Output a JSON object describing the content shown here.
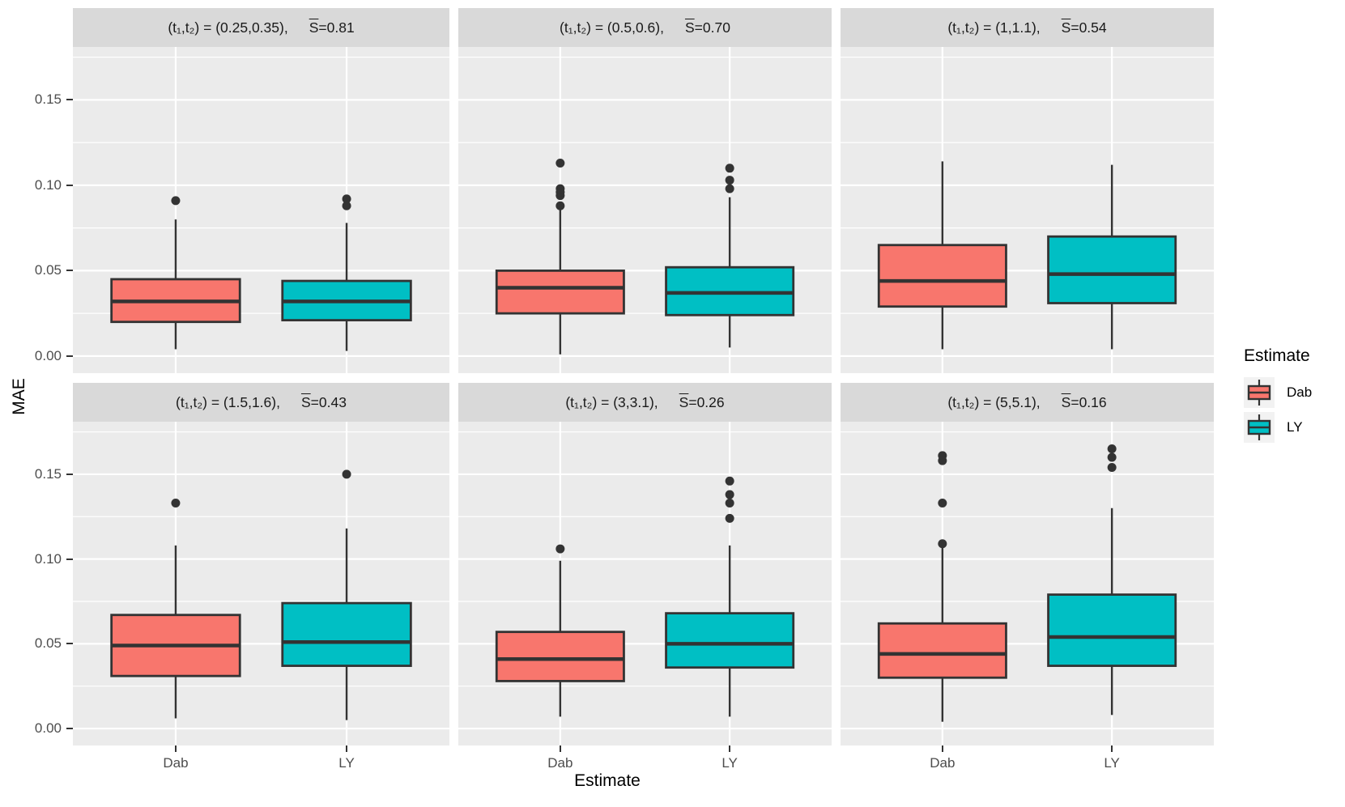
{
  "chart_data": {
    "type": "boxplot",
    "title": "",
    "ylabel": "MAE",
    "xlabel": "Estimate",
    "categories": [
      "Dab",
      "LY"
    ],
    "yticks": [
      0.0,
      0.05,
      0.1,
      0.15
    ],
    "ytick_labels": [
      "0.00",
      "0.05",
      "0.10",
      "0.15"
    ],
    "yticks_minor": [
      0.025,
      0.075,
      0.125,
      0.175
    ],
    "ylim": [
      -0.01,
      0.181
    ],
    "grid": "major-and-minor-white-on-gray",
    "legend": {
      "title": "Estimate",
      "position": "right",
      "entries": [
        {
          "label": "Dab",
          "color": "#F8766D"
        },
        {
          "label": "LY",
          "color": "#00BFC4"
        }
      ]
    },
    "facets": [
      {
        "row": 0,
        "col": 0,
        "t_label": "(t₁,t₂) = (0.25,0.35),",
        "sbar_symbol": "S",
        "s_label": "=0.81",
        "boxes": [
          {
            "group": "Dab",
            "whisker_low": 0.004,
            "q1": 0.02,
            "median": 0.032,
            "q3": 0.045,
            "whisker_high": 0.08,
            "outliers": [
              0.091
            ]
          },
          {
            "group": "LY",
            "whisker_low": 0.003,
            "q1": 0.021,
            "median": 0.032,
            "q3": 0.044,
            "whisker_high": 0.078,
            "outliers": [
              0.088,
              0.092
            ]
          }
        ]
      },
      {
        "row": 0,
        "col": 1,
        "t_label": "(t₁,t₂) = (0.5,0.6),",
        "sbar_symbol": "S",
        "s_label": "=0.70",
        "boxes": [
          {
            "group": "Dab",
            "whisker_low": 0.001,
            "q1": 0.025,
            "median": 0.04,
            "q3": 0.05,
            "whisker_high": 0.086,
            "outliers": [
              0.088,
              0.094,
              0.096,
              0.098,
              0.113
            ]
          },
          {
            "group": "LY",
            "whisker_low": 0.005,
            "q1": 0.024,
            "median": 0.037,
            "q3": 0.052,
            "whisker_high": 0.093,
            "outliers": [
              0.098,
              0.103,
              0.11
            ]
          }
        ]
      },
      {
        "row": 0,
        "col": 2,
        "t_label": "(t₁,t₂) = (1,1.1),",
        "sbar_symbol": "S",
        "s_label": "=0.54",
        "boxes": [
          {
            "group": "Dab",
            "whisker_low": 0.004,
            "q1": 0.029,
            "median": 0.044,
            "q3": 0.065,
            "whisker_high": 0.114,
            "outliers": []
          },
          {
            "group": "LY",
            "whisker_low": 0.004,
            "q1": 0.031,
            "median": 0.048,
            "q3": 0.07,
            "whisker_high": 0.112,
            "outliers": []
          }
        ]
      },
      {
        "row": 1,
        "col": 0,
        "t_label": "(t₁,t₂) = (1.5,1.6),",
        "sbar_symbol": "S",
        "s_label": "=0.43",
        "boxes": [
          {
            "group": "Dab",
            "whisker_low": 0.006,
            "q1": 0.031,
            "median": 0.049,
            "q3": 0.067,
            "whisker_high": 0.108,
            "outliers": [
              0.133
            ]
          },
          {
            "group": "LY",
            "whisker_low": 0.005,
            "q1": 0.037,
            "median": 0.051,
            "q3": 0.074,
            "whisker_high": 0.118,
            "outliers": [
              0.15
            ]
          }
        ]
      },
      {
        "row": 1,
        "col": 1,
        "t_label": "(t₁,t₂) = (3,3.1),",
        "sbar_symbol": "S",
        "s_label": "=0.26",
        "boxes": [
          {
            "group": "Dab",
            "whisker_low": 0.007,
            "q1": 0.028,
            "median": 0.041,
            "q3": 0.057,
            "whisker_high": 0.099,
            "outliers": [
              0.106
            ]
          },
          {
            "group": "LY",
            "whisker_low": 0.007,
            "q1": 0.036,
            "median": 0.05,
            "q3": 0.068,
            "whisker_high": 0.108,
            "outliers": [
              0.124,
              0.133,
              0.138,
              0.146
            ]
          }
        ]
      },
      {
        "row": 1,
        "col": 2,
        "t_label": "(t₁,t₂) = (5,5.1),",
        "sbar_symbol": "S",
        "s_label": "=0.16",
        "boxes": [
          {
            "group": "Dab",
            "whisker_low": 0.004,
            "q1": 0.03,
            "median": 0.044,
            "q3": 0.062,
            "whisker_high": 0.107,
            "outliers": [
              0.109,
              0.133,
              0.158,
              0.161
            ]
          },
          {
            "group": "LY",
            "whisker_low": 0.008,
            "q1": 0.037,
            "median": 0.054,
            "q3": 0.079,
            "whisker_high": 0.13,
            "outliers": [
              0.154,
              0.16,
              0.165
            ]
          }
        ]
      }
    ]
  },
  "colors": {
    "dab_fill": "#F8766D",
    "ly_fill": "#00BFC4",
    "panel_bg": "#EBEBEB",
    "strip_bg": "#D9D9D9",
    "gridline": "#FFFFFF",
    "box_stroke": "#333333",
    "outlier": "#333333",
    "axis_text": "#4D4D4D",
    "tick_mark": "#333333",
    "legend_key_bg": "#F2F2F2"
  }
}
